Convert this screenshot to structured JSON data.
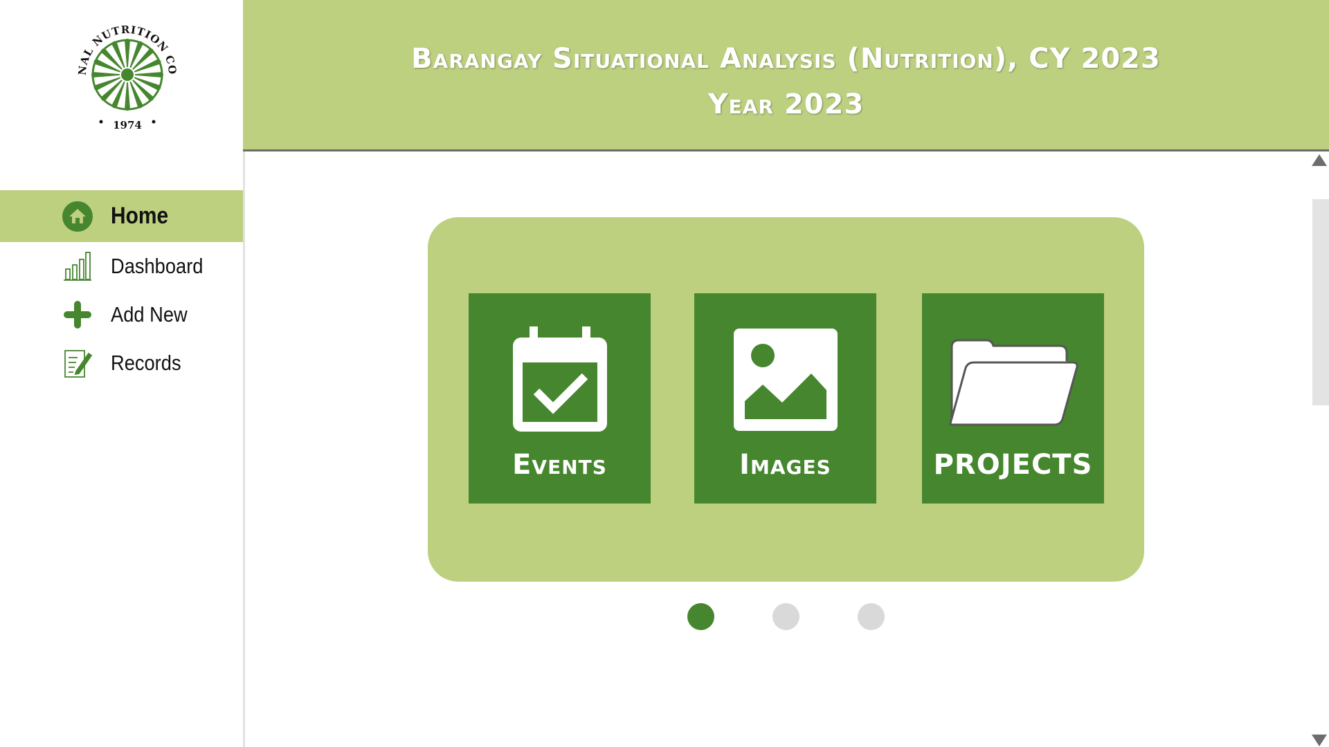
{
  "logo": {
    "text_top": "NATIONAL NUTRITION COUNCIL",
    "year": "1974"
  },
  "sidebar": {
    "items": [
      {
        "label": "Home",
        "icon": "home-icon",
        "active": true
      },
      {
        "label": "Dashboard",
        "icon": "bar-chart-icon",
        "active": false
      },
      {
        "label": "Add New",
        "icon": "plus-icon",
        "active": false
      },
      {
        "label": "Records",
        "icon": "document-edit-icon",
        "active": false
      }
    ]
  },
  "header": {
    "title": "Barangay Situational Analysis (Nutrition), CY 2023",
    "subtitle": "Year 2023"
  },
  "tiles": [
    {
      "label": "Events",
      "icon": "calendar-check-icon"
    },
    {
      "label": "Images",
      "icon": "image-icon"
    },
    {
      "label": "PROJECTS",
      "icon": "folder-open-icon"
    }
  ],
  "carousel": {
    "pages": 3,
    "active_index": 0
  },
  "colors": {
    "accent_light": "#bdd080",
    "accent_dark": "#45862e",
    "dot_inactive": "#d9d9d9"
  }
}
